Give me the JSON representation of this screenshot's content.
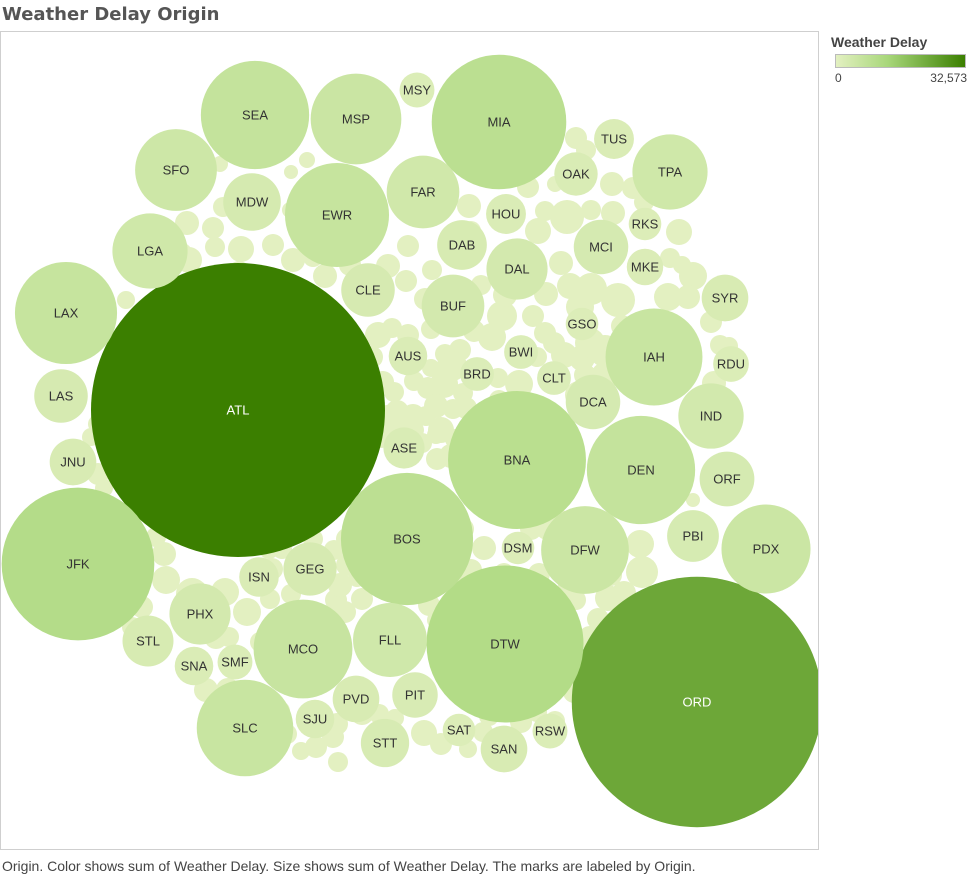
{
  "title": "Weather Delay Origin",
  "legend": {
    "title": "Weather Delay",
    "min_label": "0",
    "max_label": "32,573",
    "min": 0,
    "max": 32573,
    "colors": {
      "low": "#e3f0c1",
      "mid": "#a8d77a",
      "high": "#3b7f00"
    }
  },
  "caption": "Origin.  Color shows sum of Weather Delay.  Size shows sum of Weather Delay.  The marks are labeled by Origin.",
  "chart_data": {
    "type": "packed-bubble",
    "measure": "Weather Delay",
    "max_value": 32573,
    "bubbles": [
      {
        "label": "ATL",
        "value": 32573
      },
      {
        "label": "ORD",
        "value": 23630
      },
      {
        "label": "DTW",
        "value": 9290
      },
      {
        "label": "JFK",
        "value": 8780
      },
      {
        "label": "BNA",
        "value": 7170
      },
      {
        "label": "MIA",
        "value": 6820
      },
      {
        "label": "BOS",
        "value": 6580
      },
      {
        "label": "DEN",
        "value": 4420
      },
      {
        "label": "EWR",
        "value": 4080
      },
      {
        "label": "SLC",
        "value": 3510
      },
      {
        "label": "SEA",
        "value": 4420
      },
      {
        "label": "LAX",
        "value": 3930
      },
      {
        "label": "IAH",
        "value": 3540
      },
      {
        "label": "MCO",
        "value": 3680
      },
      {
        "label": "PDX",
        "value": 2990
      },
      {
        "label": "MSP",
        "value": 3100
      },
      {
        "label": "FLL",
        "value": 2060
      },
      {
        "label": "SFO",
        "value": 2520
      },
      {
        "label": "DFW",
        "value": 2900
      },
      {
        "label": "FAR",
        "value": 1990
      },
      {
        "label": "LGA",
        "value": 2130
      },
      {
        "label": "IND",
        "value": 1610
      },
      {
        "label": "TPA",
        "value": 2130
      },
      {
        "label": "PHX",
        "value": 1410
      },
      {
        "label": "DCA",
        "value": 1120
      },
      {
        "label": "MCI",
        "value": 1120
      },
      {
        "label": "BUF",
        "value": 1480
      },
      {
        "label": "DAL",
        "value": 1410
      },
      {
        "label": "LAS",
        "value": 1080
      },
      {
        "label": "ORF",
        "value": 1130
      },
      {
        "label": "GEG",
        "value": 1070
      },
      {
        "label": "PBI",
        "value": 1010
      },
      {
        "label": "MDW",
        "value": 1250
      },
      {
        "label": "STL",
        "value": 980
      },
      {
        "label": "CLE",
        "value": 1080
      },
      {
        "label": "JNU",
        "value": 820
      },
      {
        "label": "DAB",
        "value": 930
      },
      {
        "label": "SAN",
        "value": 820
      },
      {
        "label": "STT",
        "value": 880
      },
      {
        "label": "SYR",
        "value": 820
      },
      {
        "label": "PIT",
        "value": 780
      },
      {
        "label": "PVD",
        "value": 820
      },
      {
        "label": "OAK",
        "value": 710
      },
      {
        "label": "TUS",
        "value": 600
      },
      {
        "label": "HOU",
        "value": 600
      },
      {
        "label": "ISN",
        "value": 590
      },
      {
        "label": "ASE",
        "value": 640
      },
      {
        "label": "AUS",
        "value": 560
      },
      {
        "label": "SNA",
        "value": 560
      },
      {
        "label": "SJU",
        "value": 560
      },
      {
        "label": "BWI",
        "value": 430
      },
      {
        "label": "BRD",
        "value": 430
      },
      {
        "label": "CLT",
        "value": 430
      },
      {
        "label": "SMF",
        "value": 460
      },
      {
        "label": "RSW",
        "value": 460
      },
      {
        "label": "SAT",
        "value": 400
      },
      {
        "label": "GSO",
        "value": 400
      },
      {
        "label": "MKE",
        "value": 500
      },
      {
        "label": "RDU",
        "value": 480
      },
      {
        "label": "RKS",
        "value": 400
      },
      {
        "label": "DSM",
        "value": 400
      },
      {
        "label": "MSY",
        "value": 460
      }
    ]
  }
}
